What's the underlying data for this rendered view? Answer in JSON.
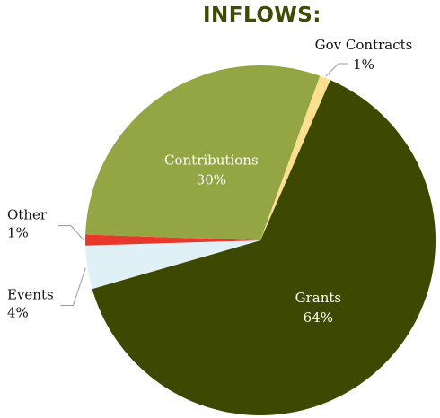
{
  "chart_data": {
    "type": "pie",
    "title": "INFLOWS:",
    "slices": [
      {
        "label": "Grants",
        "value": 64,
        "pct_label": "64%",
        "color": "#3d4800",
        "label_color": "#ffffff",
        "label_pos": "inside"
      },
      {
        "label": "Events",
        "value": 4,
        "pct_label": "4%",
        "color": "#dff0f6",
        "label_color": "#111111",
        "label_pos": "outside-left"
      },
      {
        "label": "Other",
        "value": 1,
        "pct_label": "1%",
        "color": "#e8372b",
        "label_color": "#111111",
        "label_pos": "outside-left"
      },
      {
        "label": "Contributions",
        "value": 30,
        "pct_label": "30%",
        "color": "#94a644",
        "label_color": "#ffffff",
        "label_pos": "inside"
      },
      {
        "label": "Gov Contracts",
        "value": 1,
        "pct_label": "1%",
        "color": "#fae08f",
        "label_color": "#111111",
        "label_pos": "outside-top-right"
      }
    ],
    "start": "clockwise from bottom-right, Grants first",
    "legend": "none"
  }
}
